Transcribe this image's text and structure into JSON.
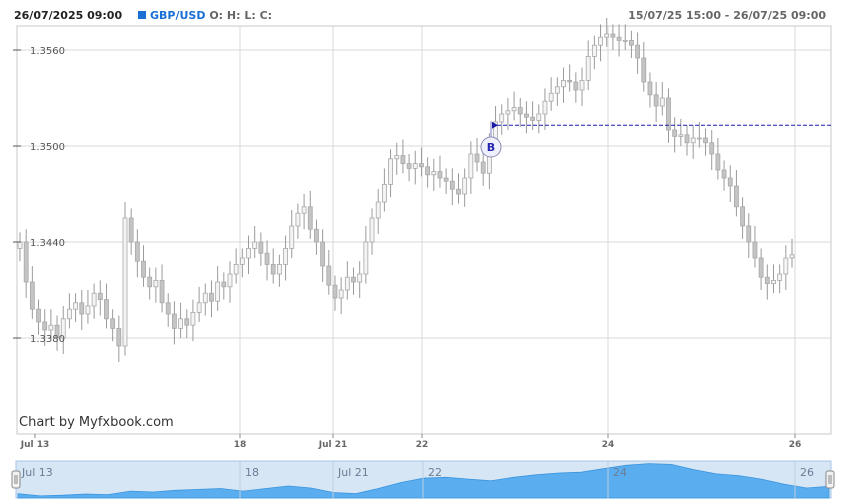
{
  "header": {
    "timestamp": "26/07/2025 09:00",
    "symbol": "GBP/USD",
    "ohlc_label": "O: H: L: C:",
    "range": "15/07/25 15:00 - 26/07/25 09:00"
  },
  "watermark": "Chart by Myfxbook.com",
  "navigator": {
    "labels": [
      "Jul 13",
      "18",
      "Jul 21",
      "22",
      "24",
      "26"
    ],
    "values": [
      1.3395,
      1.3382,
      1.3386,
      1.3393,
      1.339,
      1.341,
      1.3405,
      1.3415,
      1.342,
      1.3425,
      1.341,
      1.3425,
      1.344,
      1.3428,
      1.3402,
      1.3395,
      1.3425,
      1.346,
      1.3485,
      1.349,
      1.348,
      1.347,
      1.349,
      1.3505,
      1.3515,
      1.352,
      1.354,
      1.356,
      1.357,
      1.3565,
      1.3535,
      1.351,
      1.35,
      1.348,
      1.345,
      1.3428,
      1.3438
    ],
    "colors": {
      "fill": "#5aaef0",
      "background": "#d6e6f5",
      "border": "#a9c7e8"
    }
  },
  "chart_data": {
    "type": "candlestick",
    "title": "GBP/USD",
    "ylim": [
      1.332,
      1.3575
    ],
    "yticks": [
      "1.3380",
      "1.3440",
      "1.3500",
      "1.3560"
    ],
    "xticks": [
      "Jul 13",
      "18",
      "Jul 21",
      "22",
      "24",
      "26"
    ],
    "grid": true,
    "legend": "none",
    "buy_marker": {
      "label": "B",
      "price": 1.3513
    },
    "series": [
      {
        "key": "close",
        "values": [
          1.344,
          1.3415,
          1.3398,
          1.339,
          1.3385,
          1.3388,
          1.338,
          1.3392,
          1.3398,
          1.3402,
          1.3395,
          1.34,
          1.3408,
          1.3404,
          1.3392,
          1.3386,
          1.3375,
          1.3455,
          1.344,
          1.3428,
          1.3418,
          1.3412,
          1.3416,
          1.3402,
          1.3395,
          1.3386,
          1.3392,
          1.3388,
          1.3396,
          1.3402,
          1.3408,
          1.3403,
          1.3415,
          1.3412,
          1.342,
          1.3426,
          1.343,
          1.3436,
          1.344,
          1.3433,
          1.3426,
          1.342,
          1.3426,
          1.3436,
          1.345,
          1.3458,
          1.3462,
          1.3448,
          1.344,
          1.3425,
          1.3413,
          1.3405,
          1.341,
          1.3418,
          1.3415,
          1.342,
          1.344,
          1.3455,
          1.3465,
          1.3476,
          1.3492,
          1.3494,
          1.3489,
          1.3486,
          1.3489,
          1.3487,
          1.3482,
          1.3484,
          1.348,
          1.3478,
          1.3473,
          1.347,
          1.348,
          1.3495,
          1.349,
          1.3483,
          1.35,
          1.3515,
          1.352,
          1.3522,
          1.3524,
          1.352,
          1.3518,
          1.3516,
          1.352,
          1.3528,
          1.3533,
          1.3537,
          1.3541,
          1.354,
          1.3535,
          1.3541,
          1.3556,
          1.3563,
          1.3568,
          1.357,
          1.3568,
          1.3566,
          1.3566,
          1.3563,
          1.3555,
          1.354,
          1.3532,
          1.3525,
          1.353,
          1.351,
          1.3506,
          1.3507,
          1.3502,
          1.3505,
          1.3505,
          1.3502,
          1.3495,
          1.3485,
          1.348,
          1.3475,
          1.3462,
          1.345,
          1.344,
          1.343,
          1.3418,
          1.3414,
          1.3416,
          1.342,
          1.343,
          1.3432
        ]
      }
    ]
  }
}
